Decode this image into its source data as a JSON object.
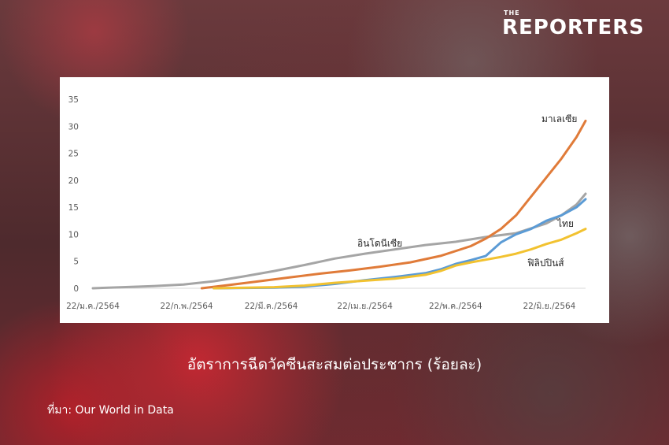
{
  "brand": {
    "small": "THE",
    "big": "REPORTERS"
  },
  "caption": "อัตราการฉีดวัคซีนสะสมต่อประชากร (ร้อยละ)",
  "source": "ที่มา: Our World in Data",
  "colors": {
    "มาเลเซีย": "#e07b39",
    "อินโดนีเซีย": "#a5a5a5",
    "ไทย": "#5b9bd5",
    "ฟิลิปปินส์": "#f2c230"
  },
  "chart_data": {
    "type": "line",
    "title": "",
    "xlabel": "",
    "ylabel": "",
    "ylim": [
      0,
      35
    ],
    "yticks": [
      0,
      5,
      10,
      15,
      20,
      25,
      30,
      35
    ],
    "xticks": [
      "22/ม.ค./2564",
      "22/ก.พ./2564",
      "22/มี.ค./2564",
      "22/เม.ย./2564",
      "22/พ.ค./2564",
      "22/มิ.ย./2564"
    ],
    "x_range": [
      0,
      163
    ],
    "xtick_positions": [
      0,
      31,
      59,
      90,
      120,
      151
    ],
    "grid": false,
    "series": [
      {
        "name": "อินโดนีเซีย",
        "x": [
          0,
          10,
          20,
          30,
          40,
          50,
          60,
          70,
          80,
          90,
          100,
          110,
          120,
          130,
          140,
          150,
          155,
          160,
          163
        ],
        "y": [
          0,
          0.2,
          0.4,
          0.7,
          1.3,
          2.2,
          3.2,
          4.3,
          5.5,
          6.4,
          7.2,
          8.0,
          8.6,
          9.5,
          10.2,
          12.0,
          13.5,
          15.5,
          17.5
        ]
      },
      {
        "name": "มาเลเซีย",
        "x": [
          36,
          45,
          55,
          65,
          75,
          85,
          95,
          105,
          115,
          125,
          130,
          135,
          140,
          145,
          150,
          155,
          160,
          163
        ],
        "y": [
          0,
          0.6,
          1.3,
          2.0,
          2.7,
          3.3,
          4.0,
          4.8,
          6.0,
          7.8,
          9.2,
          11.0,
          13.5,
          17.0,
          20.5,
          24.0,
          28.0,
          31.0
        ]
      },
      {
        "name": "ไทย",
        "x": [
          40,
          60,
          70,
          80,
          90,
          100,
          110,
          115,
          120,
          125,
          130,
          135,
          140,
          145,
          150,
          155,
          160,
          163
        ],
        "y": [
          0,
          0.1,
          0.3,
          0.8,
          1.5,
          2.1,
          2.8,
          3.5,
          4.5,
          5.2,
          6.0,
          8.5,
          10.0,
          11.0,
          12.5,
          13.5,
          15.0,
          16.5
        ]
      },
      {
        "name": "ฟิลิปปินส์",
        "x": [
          40,
          60,
          70,
          80,
          90,
          100,
          110,
          115,
          120,
          125,
          130,
          135,
          140,
          145,
          150,
          155,
          160,
          163
        ],
        "y": [
          0,
          0.2,
          0.5,
          1.0,
          1.4,
          1.8,
          2.5,
          3.2,
          4.2,
          4.8,
          5.3,
          5.8,
          6.4,
          7.2,
          8.2,
          9.0,
          10.2,
          11.0
        ]
      }
    ],
    "labels": [
      {
        "text": "มาเลเซีย",
        "series": "มาเลเซีย"
      },
      {
        "text": "อินโดนีเซีย",
        "series": "อินโดนีเซีย"
      },
      {
        "text": "ไทย",
        "series": "ไทย"
      },
      {
        "text": "ฟิลิปปินส์",
        "series": "ฟิลิปปินส์"
      }
    ]
  }
}
